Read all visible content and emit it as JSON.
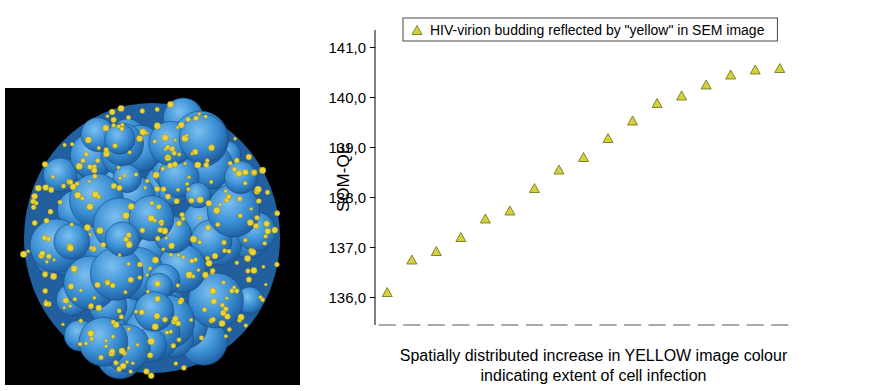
{
  "chart_data": {
    "type": "scatter",
    "y_label": "SOM-QE",
    "x_label": "Spatially distributed increase in YELLOW image colour\nindicating extent of cell infection",
    "categories": [
      null,
      null,
      null,
      null,
      null,
      null,
      null,
      null,
      null,
      null,
      null,
      null,
      null,
      null,
      null,
      null,
      null
    ],
    "series": [
      {
        "name": "HIV-virion budding reflected by \"yellow\" in SEM image",
        "color": "#d4d23c",
        "marker": "triangle",
        "values": [
          136.1,
          136.75,
          136.92,
          137.2,
          137.57,
          137.73,
          138.18,
          138.55,
          138.8,
          139.18,
          139.53,
          139.88,
          140.03,
          140.25,
          140.45,
          140.55,
          140.58
        ]
      }
    ],
    "ylim": [
      135.45,
      141.35
    ],
    "yticks": [
      {
        "value": 136,
        "label": "136,0"
      },
      {
        "value": 137,
        "label": "137,0"
      },
      {
        "value": 138,
        "label": "138,0"
      },
      {
        "value": 139,
        "label": "139,0"
      },
      {
        "value": 140,
        "label": "140,0"
      },
      {
        "value": 141,
        "label": "141,0"
      }
    ],
    "grid": false,
    "legend": "top",
    "tick_labels": "y"
  }
}
